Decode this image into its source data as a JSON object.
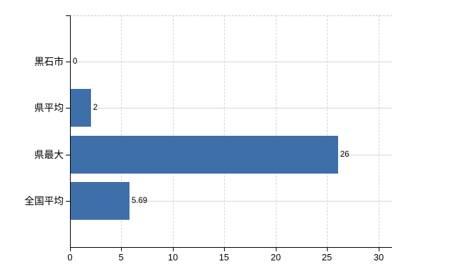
{
  "window": {
    "background_color": "#ffffff"
  },
  "chart_data": {
    "type": "bar",
    "orientation": "horizontal",
    "title": "",
    "xlabel": "",
    "ylabel": "",
    "categories": [
      "黒石市",
      "県平均",
      "県最大",
      "全国平均"
    ],
    "values": [
      0,
      2,
      26,
      5.69
    ],
    "value_labels": [
      "0",
      "2",
      "26",
      "5.69"
    ],
    "xlim": [
      0,
      31.3
    ],
    "xticks": [
      0,
      5,
      10,
      15,
      20,
      25,
      30
    ],
    "xtick_labels": [
      "0",
      "5",
      "10",
      "15",
      "20",
      "25",
      "30"
    ],
    "grid": true,
    "legend": false,
    "colors": {
      "bar": "#3f6fa8",
      "grid_horizontal": "#d6d6d2",
      "grid_vertical": "#d2d6ce",
      "plot_border_top": "#c9c9c9",
      "axis": "#000000",
      "text": "#000000"
    }
  }
}
